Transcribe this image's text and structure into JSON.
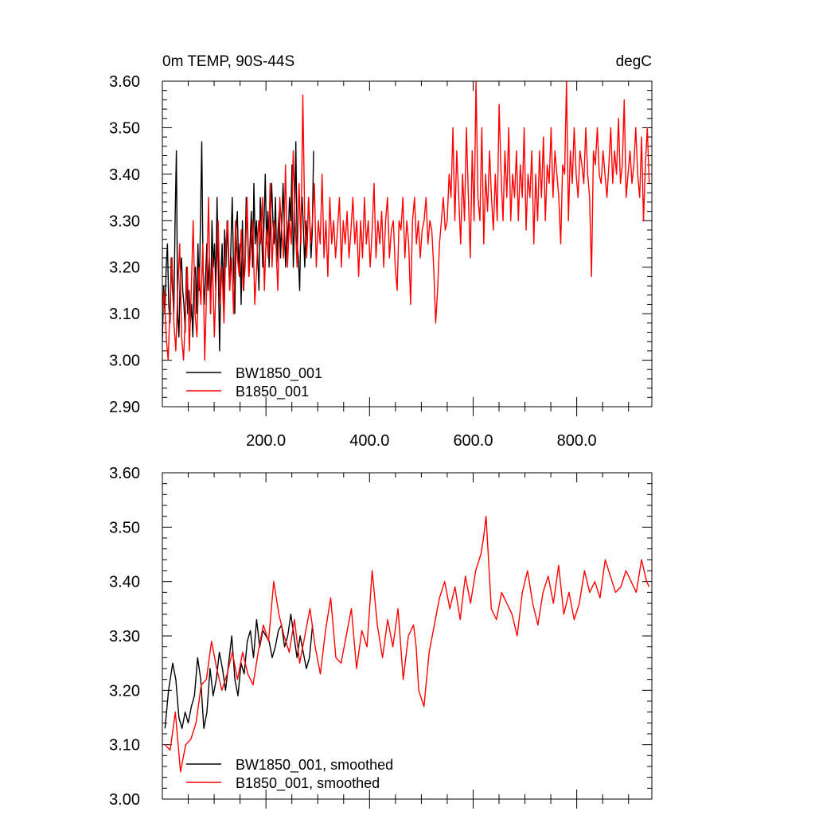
{
  "chart_data": [
    {
      "type": "line",
      "title_left": "0m TEMP, 90S-44S",
      "title_right": "degC",
      "xlim": [
        0,
        945
      ],
      "ylim": [
        2.9,
        3.6
      ],
      "x_ticks": [
        200,
        400,
        600,
        800
      ],
      "x_tick_labels": [
        "200.0",
        "400.0",
        "600.0",
        "800.0"
      ],
      "y_ticks": [
        2.9,
        3.0,
        3.1,
        3.2,
        3.3,
        3.4,
        3.5,
        3.6
      ],
      "y_tick_labels": [
        "2.90",
        "3.00",
        "3.10",
        "3.20",
        "3.30",
        "3.40",
        "3.50",
        "3.60"
      ],
      "legend_position": "bottom-left",
      "series": [
        {
          "name": "BW1850_001",
          "color": "#000000",
          "x_start": 0,
          "x_end": 292,
          "values": [
            3.04,
            3.16,
            3.1,
            3.2,
            3.25,
            3.12,
            3.08,
            3.22,
            3.15,
            3.1,
            3.3,
            3.45,
            3.1,
            3.05,
            3.18,
            3.22,
            3.15,
            3.12,
            3.06,
            3.2,
            3.1,
            3.15,
            3.08,
            3.12,
            3.05,
            3.18,
            3.2,
            3.1,
            3.25,
            3.15,
            3.3,
            3.47,
            3.2,
            3.12,
            3.18,
            3.25,
            3.15,
            3.22,
            3.1,
            3.3,
            3.2,
            3.25,
            3.15,
            3.35,
            3.2,
            3.02,
            3.18,
            3.25,
            3.12,
            3.28,
            3.2,
            3.3,
            3.22,
            3.15,
            3.25,
            3.35,
            3.2,
            3.1,
            3.28,
            3.32,
            3.2,
            3.25,
            3.12,
            3.3,
            3.15,
            3.22,
            3.35,
            3.28,
            3.18,
            3.25,
            3.32,
            3.2,
            3.38,
            3.25,
            3.3,
            3.22,
            3.15,
            3.35,
            3.28,
            3.2,
            3.3,
            3.4,
            3.25,
            3.32,
            3.2,
            3.3,
            3.38,
            3.3,
            3.25,
            3.35,
            3.2,
            3.28,
            3.32,
            3.22,
            3.3,
            3.38,
            3.28,
            3.2,
            3.3,
            3.25,
            3.35,
            3.3,
            3.42,
            3.2,
            3.3,
            3.47,
            3.25,
            3.22,
            3.15,
            3.3,
            3.35,
            3.28,
            3.2,
            3.3,
            3.25,
            3.35,
            3.3,
            3.22,
            3.28,
            3.45
          ]
        },
        {
          "name": "B1850_001",
          "color": "#ff0000",
          "x_start": 0,
          "x_end": 940,
          "values": [
            3.1,
            3.15,
            3.05,
            3.0,
            3.12,
            3.22,
            3.08,
            3.02,
            3.15,
            3.25,
            3.05,
            3.0,
            3.1,
            3.2,
            3.02,
            3.15,
            3.3,
            3.1,
            3.05,
            3.2,
            3.12,
            3.25,
            3.0,
            3.15,
            3.35,
            3.1,
            3.22,
            3.05,
            3.18,
            3.3,
            3.12,
            3.2,
            3.08,
            3.25,
            3.3,
            3.15,
            3.22,
            3.1,
            3.3,
            3.22,
            3.18,
            3.28,
            3.15,
            3.2,
            3.35,
            3.18,
            3.25,
            3.3,
            3.12,
            3.2,
            3.3,
            3.25,
            3.35,
            3.15,
            3.28,
            3.22,
            3.38,
            3.2,
            3.3,
            3.25,
            3.15,
            3.35,
            3.28,
            3.22,
            3.42,
            3.2,
            3.3,
            3.25,
            3.45,
            3.3,
            3.2,
            3.38,
            3.25,
            3.57,
            3.3,
            3.22,
            3.35,
            3.25,
            3.3,
            3.38,
            3.2,
            3.3,
            3.25,
            3.4,
            3.22,
            3.3,
            3.18,
            3.35,
            3.25,
            3.3,
            3.22,
            3.28,
            3.35,
            3.2,
            3.3,
            3.25,
            3.32,
            3.22,
            3.28,
            3.35,
            3.25,
            3.3,
            3.18,
            3.3,
            3.22,
            3.35,
            3.25,
            3.3,
            3.2,
            3.28,
            3.38,
            3.22,
            3.3,
            3.25,
            3.32,
            3.2,
            3.3,
            3.35,
            3.22,
            3.28,
            3.3,
            3.2,
            3.15,
            3.3,
            3.28,
            3.35,
            3.22,
            3.3,
            3.25,
            3.12,
            3.3,
            3.35,
            3.25,
            3.3,
            3.22,
            3.28,
            3.3,
            3.35,
            3.25,
            3.3,
            3.28,
            3.2,
            3.08,
            3.15,
            3.25,
            3.3,
            3.35,
            3.28,
            3.3,
            3.4,
            3.35,
            3.5,
            3.3,
            3.45,
            3.35,
            3.25,
            3.4,
            3.3,
            3.5,
            3.35,
            3.22,
            3.45,
            3.3,
            3.6,
            3.35,
            3.3,
            3.5,
            3.25,
            3.4,
            3.32,
            3.45,
            3.35,
            3.28,
            3.4,
            3.3,
            3.55,
            3.4,
            3.3,
            3.45,
            3.35,
            3.5,
            3.3,
            3.4,
            3.35,
            3.45,
            3.3,
            3.42,
            3.35,
            3.5,
            3.28,
            3.4,
            3.35,
            3.45,
            3.25,
            3.4,
            3.3,
            3.45,
            3.35,
            3.48,
            3.3,
            3.42,
            3.38,
            3.5,
            3.35,
            3.45,
            3.4,
            3.35,
            3.25,
            3.42,
            3.4,
            3.6,
            3.3,
            3.45,
            3.38,
            3.5,
            3.4,
            3.35,
            3.45,
            3.42,
            3.38,
            3.5,
            3.4,
            3.35,
            3.18,
            3.45,
            3.42,
            3.5,
            3.4,
            3.38,
            3.45,
            3.4,
            3.35,
            3.42,
            3.5,
            3.38,
            3.45,
            3.4,
            3.52,
            3.38,
            3.42,
            3.56,
            3.35,
            3.4,
            3.45,
            3.38,
            3.42,
            3.5,
            3.4,
            3.35,
            3.48,
            3.3,
            3.42,
            3.5,
            3.38
          ]
        }
      ]
    },
    {
      "type": "line",
      "xlim": [
        0,
        945
      ],
      "ylim": [
        3.0,
        3.6
      ],
      "y_ticks": [
        3.0,
        3.1,
        3.2,
        3.3,
        3.4,
        3.5,
        3.6
      ],
      "y_tick_labels": [
        "3.00",
        "3.10",
        "3.20",
        "3.30",
        "3.40",
        "3.50",
        "3.60"
      ],
      "legend_position": "bottom-left",
      "series": [
        {
          "name": "BW1850_001, smoothed",
          "color": "#000000",
          "x": [
            5,
            12,
            20,
            26,
            32,
            38,
            44,
            50,
            56,
            62,
            68,
            74,
            80,
            86,
            92,
            98,
            104,
            110,
            116,
            122,
            128,
            134,
            140,
            146,
            152,
            158,
            164,
            170,
            176,
            182,
            188,
            194,
            200,
            206,
            212,
            218,
            224,
            230,
            236,
            242,
            248,
            254,
            260,
            266,
            272,
            278,
            284,
            290
          ],
          "y": [
            3.13,
            3.2,
            3.25,
            3.22,
            3.15,
            3.13,
            3.16,
            3.14,
            3.17,
            3.19,
            3.26,
            3.22,
            3.13,
            3.16,
            3.24,
            3.19,
            3.22,
            3.27,
            3.24,
            3.2,
            3.25,
            3.3,
            3.22,
            3.19,
            3.25,
            3.23,
            3.29,
            3.31,
            3.26,
            3.33,
            3.28,
            3.31,
            3.3,
            3.29,
            3.26,
            3.28,
            3.31,
            3.32,
            3.28,
            3.3,
            3.34,
            3.3,
            3.26,
            3.3,
            3.27,
            3.24,
            3.26,
            3.32
          ]
        },
        {
          "name": "B1850_001, smoothed",
          "color": "#ff0000",
          "x": [
            5,
            15,
            25,
            35,
            45,
            55,
            65,
            75,
            85,
            95,
            105,
            115,
            125,
            135,
            145,
            155,
            165,
            175,
            185,
            195,
            205,
            215,
            225,
            235,
            245,
            255,
            265,
            275,
            285,
            295,
            305,
            315,
            325,
            335,
            345,
            355,
            365,
            375,
            385,
            395,
            405,
            415,
            425,
            435,
            445,
            455,
            465,
            475,
            485,
            490,
            495,
            505,
            515,
            525,
            535,
            545,
            555,
            565,
            575,
            585,
            595,
            605,
            615,
            620,
            625,
            635,
            645,
            655,
            665,
            675,
            685,
            695,
            705,
            715,
            725,
            735,
            745,
            755,
            765,
            775,
            785,
            795,
            805,
            815,
            825,
            835,
            845,
            855,
            865,
            875,
            885,
            895,
            905,
            915,
            925,
            935,
            940
          ],
          "y": [
            3.1,
            3.09,
            3.16,
            3.05,
            3.1,
            3.11,
            3.14,
            3.21,
            3.22,
            3.29,
            3.24,
            3.2,
            3.23,
            3.27,
            3.22,
            3.27,
            3.23,
            3.21,
            3.27,
            3.32,
            3.29,
            3.4,
            3.34,
            3.3,
            3.27,
            3.33,
            3.25,
            3.3,
            3.35,
            3.28,
            3.23,
            3.31,
            3.37,
            3.26,
            3.25,
            3.3,
            3.35,
            3.24,
            3.31,
            3.28,
            3.42,
            3.32,
            3.26,
            3.33,
            3.28,
            3.35,
            3.22,
            3.3,
            3.32,
            3.28,
            3.2,
            3.17,
            3.27,
            3.32,
            3.37,
            3.4,
            3.35,
            3.39,
            3.33,
            3.41,
            3.36,
            3.42,
            3.45,
            3.48,
            3.52,
            3.35,
            3.33,
            3.38,
            3.36,
            3.34,
            3.3,
            3.38,
            3.42,
            3.36,
            3.32,
            3.38,
            3.41,
            3.36,
            3.43,
            3.34,
            3.38,
            3.33,
            3.36,
            3.42,
            3.38,
            3.4,
            3.37,
            3.44,
            3.41,
            3.38,
            3.39,
            3.42,
            3.4,
            3.38,
            3.44,
            3.4,
            3.39
          ]
        }
      ]
    }
  ]
}
